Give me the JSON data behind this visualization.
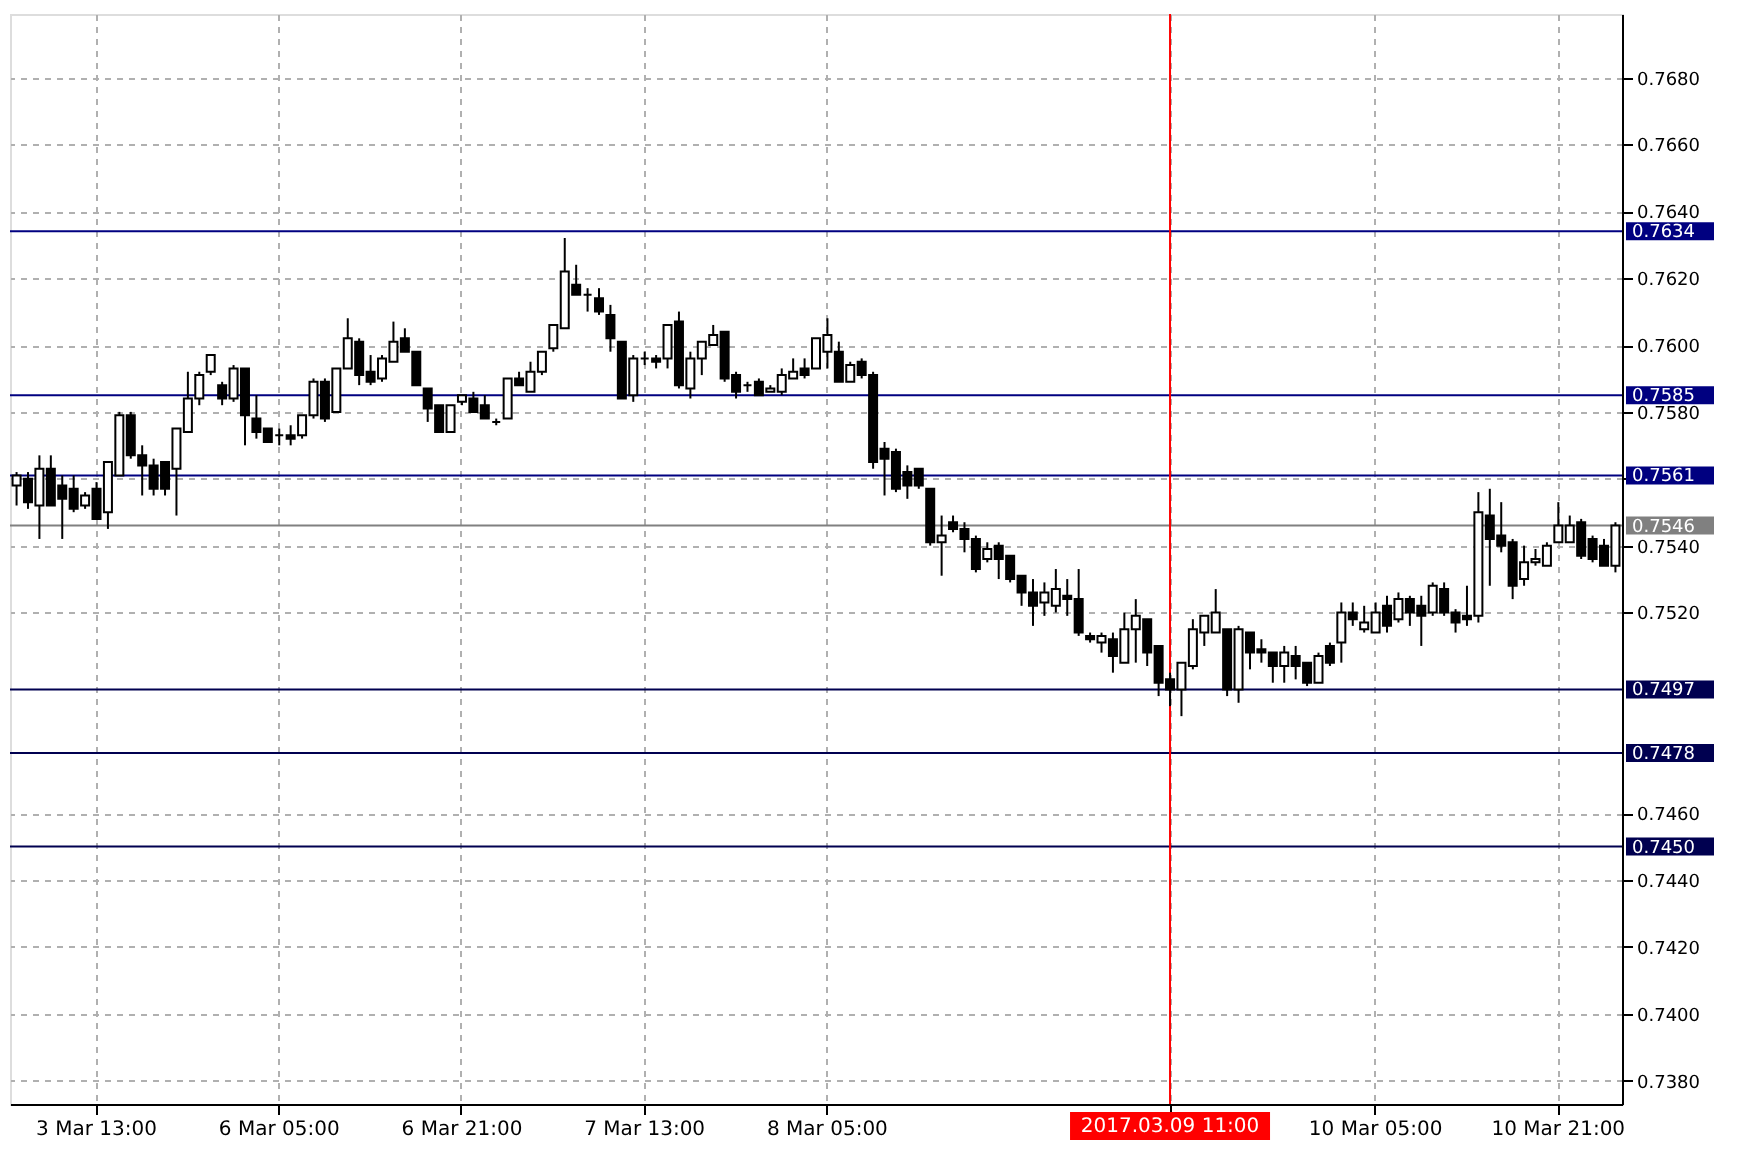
{
  "chart_data": {
    "type": "candlestick",
    "categories": [
      null,
      null,
      null,
      null,
      null,
      null,
      null,
      "3 Mar 13:00",
      null,
      null,
      null,
      null,
      null,
      null,
      null,
      null,
      null,
      null,
      null,
      null,
      null,
      null,
      null,
      "6 Mar 05:00",
      null,
      null,
      null,
      null,
      null,
      null,
      null,
      null,
      null,
      null,
      null,
      null,
      null,
      null,
      null,
      "6 Mar 21:00",
      null,
      null,
      null,
      null,
      null,
      null,
      null,
      null,
      null,
      null,
      null,
      null,
      null,
      null,
      null,
      "7 Mar 13:00",
      null,
      null,
      null,
      null,
      null,
      null,
      null,
      null,
      null,
      null,
      null,
      null,
      null,
      null,
      null,
      "8 Mar 05:00",
      null,
      null,
      null,
      null,
      null,
      null,
      null,
      null,
      null,
      null,
      null,
      null,
      null,
      null,
      null,
      null,
      null,
      null,
      null,
      null,
      null,
      null,
      null,
      null,
      null,
      null,
      null,
      null,
      null,
      "2017.03.09 11:00",
      null,
      null,
      null,
      null,
      null,
      null,
      null,
      null,
      null,
      null,
      null,
      null,
      null,
      null,
      null,
      null,
      null,
      "10 Mar 05:00",
      null,
      null,
      null,
      null,
      null,
      null,
      null,
      null,
      null,
      null,
      null,
      null,
      null,
      null,
      null,
      "10 Mar 21:00",
      null,
      null,
      null,
      null,
      null
    ],
    "ohlc": [
      [
        0.7558,
        0.7562,
        0.7552,
        0.7561
      ],
      [
        0.756,
        0.7562,
        0.7551,
        0.7553
      ],
      [
        0.7552,
        0.7567,
        0.7542,
        0.7563
      ],
      [
        0.7563,
        0.7567,
        0.7552,
        0.7552
      ],
      [
        0.7558,
        0.7561,
        0.7542,
        0.7554
      ],
      [
        0.7557,
        0.7561,
        0.755,
        0.7551
      ],
      [
        0.7552,
        0.7556,
        0.7551,
        0.7555
      ],
      [
        0.7557,
        0.7559,
        0.7548,
        0.7548
      ],
      [
        0.755,
        0.7565,
        0.7545,
        0.7565
      ],
      [
        0.7561,
        0.758,
        0.7561,
        0.7579
      ],
      [
        0.7579,
        0.758,
        0.7566,
        0.7567
      ],
      [
        0.7567,
        0.757,
        0.7555,
        0.7564
      ],
      [
        0.7564,
        0.7566,
        0.7555,
        0.7557
      ],
      [
        0.7565,
        0.7565,
        0.7555,
        0.7557
      ],
      [
        0.7563,
        0.7575,
        0.7549,
        0.7575
      ],
      [
        0.7574,
        0.7592,
        0.7574,
        0.7584
      ],
      [
        0.7584,
        0.7592,
        0.7582,
        0.7591
      ],
      [
        0.7592,
        0.7597,
        0.7591,
        0.7597
      ],
      [
        0.7588,
        0.7589,
        0.7582,
        0.7584
      ],
      [
        0.7584,
        0.7594,
        0.7583,
        0.7593
      ],
      [
        0.7593,
        0.7593,
        0.757,
        0.7579
      ],
      [
        0.7578,
        0.7585,
        0.7572,
        0.7574
      ],
      [
        0.7575,
        0.7575,
        0.7571,
        0.7571
      ],
      [
        0.7573,
        0.7575,
        0.757,
        0.7573
      ],
      [
        0.7573,
        0.7576,
        0.757,
        0.7572
      ],
      [
        0.7573,
        0.7579,
        0.7572,
        0.7579
      ],
      [
        0.7579,
        0.759,
        0.7578,
        0.7589
      ],
      [
        0.7589,
        0.759,
        0.7577,
        0.7578
      ],
      [
        0.758,
        0.7593,
        0.758,
        0.7593
      ],
      [
        0.7593,
        0.7608,
        0.7593,
        0.7602
      ],
      [
        0.7601,
        0.7602,
        0.7588,
        0.7591
      ],
      [
        0.7592,
        0.7597,
        0.7588,
        0.7589
      ],
      [
        0.759,
        0.7597,
        0.7589,
        0.7596
      ],
      [
        0.7595,
        0.7607,
        0.7595,
        0.7601
      ],
      [
        0.7602,
        0.7605,
        0.7598,
        0.7598
      ],
      [
        0.7598,
        0.7598,
        0.7588,
        0.7588
      ],
      [
        0.7587,
        0.7587,
        0.7577,
        0.7581
      ],
      [
        0.7582,
        0.7582,
        0.7574,
        0.7574
      ],
      [
        0.7574,
        0.7582,
        0.7574,
        0.7582
      ],
      [
        0.7583,
        0.7585,
        0.7582,
        0.7585
      ],
      [
        0.7584,
        0.7586,
        0.758,
        0.758
      ],
      [
        0.7582,
        0.7585,
        0.7578,
        0.7578
      ],
      [
        0.7577,
        0.7578,
        0.7576,
        0.7577
      ],
      [
        0.7578,
        0.759,
        0.7578,
        0.759
      ],
      [
        0.759,
        0.7592,
        0.7588,
        0.7588
      ],
      [
        0.7586,
        0.7595,
        0.7586,
        0.7592
      ],
      [
        0.7592,
        0.7598,
        0.7591,
        0.7598
      ],
      [
        0.7599,
        0.7606,
        0.7598,
        0.7606
      ],
      [
        0.7605,
        0.7632,
        0.7605,
        0.7622
      ],
      [
        0.7618,
        0.7624,
        0.7615,
        0.7615
      ],
      [
        0.7615,
        0.7617,
        0.761,
        0.7615
      ],
      [
        0.7614,
        0.7617,
        0.7609,
        0.761
      ],
      [
        0.7609,
        0.7612,
        0.7598,
        0.7602
      ],
      [
        0.7601,
        0.7601,
        0.7584,
        0.7584
      ],
      [
        0.7585,
        0.7597,
        0.7583,
        0.7596
      ],
      [
        0.7596,
        0.7598,
        0.7594,
        0.7596
      ],
      [
        0.7596,
        0.7597,
        0.7593,
        0.7595
      ],
      [
        0.7596,
        0.7606,
        0.7593,
        0.7606
      ],
      [
        0.7607,
        0.761,
        0.7587,
        0.7588
      ],
      [
        0.7587,
        0.7598,
        0.7584,
        0.7596
      ],
      [
        0.7596,
        0.7601,
        0.7591,
        0.7601
      ],
      [
        0.76,
        0.7606,
        0.76,
        0.7603
      ],
      [
        0.7604,
        0.7604,
        0.7589,
        0.759
      ],
      [
        0.7591,
        0.7592,
        0.7584,
        0.7586
      ],
      [
        0.7588,
        0.7589,
        0.7586,
        0.7588
      ],
      [
        0.7589,
        0.759,
        0.7585,
        0.7585
      ],
      [
        0.7586,
        0.7588,
        0.7586,
        0.7587
      ],
      [
        0.7586,
        0.7593,
        0.7585,
        0.7591
      ],
      [
        0.759,
        0.7596,
        0.759,
        0.7592
      ],
      [
        0.7593,
        0.7596,
        0.759,
        0.7591
      ],
      [
        0.7593,
        0.7602,
        0.7593,
        0.7602
      ],
      [
        0.7598,
        0.7608,
        0.7593,
        0.7603
      ],
      [
        0.7598,
        0.7601,
        0.7589,
        0.7589
      ],
      [
        0.7589,
        0.7595,
        0.7589,
        0.7594
      ],
      [
        0.7595,
        0.7596,
        0.759,
        0.7591
      ],
      [
        0.7591,
        0.7592,
        0.7563,
        0.7565
      ],
      [
        0.7569,
        0.7571,
        0.7555,
        0.7566
      ],
      [
        0.7568,
        0.7569,
        0.7556,
        0.7557
      ],
      [
        0.7562,
        0.7564,
        0.7554,
        0.7558
      ],
      [
        0.7563,
        0.7563,
        0.7557,
        0.7558
      ],
      [
        0.7557,
        0.7557,
        0.754,
        0.7541
      ],
      [
        0.7541,
        0.7549,
        0.7531,
        0.7543
      ],
      [
        0.7547,
        0.7549,
        0.7544,
        0.7545
      ],
      [
        0.7545,
        0.7547,
        0.7538,
        0.7542
      ],
      [
        0.7542,
        0.7543,
        0.7532,
        0.7533
      ],
      [
        0.7536,
        0.7541,
        0.7535,
        0.7539
      ],
      [
        0.754,
        0.7541,
        0.753,
        0.7536
      ],
      [
        0.7537,
        0.7537,
        0.7529,
        0.753
      ],
      [
        0.7531,
        0.7531,
        0.7522,
        0.7526
      ],
      [
        0.7526,
        0.753,
        0.7516,
        0.7522
      ],
      [
        0.7523,
        0.7529,
        0.7519,
        0.7526
      ],
      [
        0.7522,
        0.7533,
        0.752,
        0.7527
      ],
      [
        0.7525,
        0.753,
        0.7519,
        0.7524
      ],
      [
        0.7524,
        0.7533,
        0.7513,
        0.7514
      ],
      [
        0.7513,
        0.7514,
        0.7511,
        0.7512
      ],
      [
        0.7511,
        0.7514,
        0.7508,
        0.7513
      ],
      [
        0.7512,
        0.7514,
        0.7502,
        0.7507
      ],
      [
        0.7505,
        0.752,
        0.7505,
        0.7515
      ],
      [
        0.7515,
        0.7524,
        0.7505,
        0.7519
      ],
      [
        0.7518,
        0.7518,
        0.7504,
        0.7508
      ],
      [
        0.751,
        0.751,
        0.7495,
        0.7499
      ],
      [
        0.75,
        0.7502,
        0.7492,
        0.7497
      ],
      [
        0.7497,
        0.7505,
        0.7489,
        0.7505
      ],
      [
        0.7504,
        0.7518,
        0.7503,
        0.7515
      ],
      [
        0.7514,
        0.7519,
        0.751,
        0.7519
      ],
      [
        0.7514,
        0.7527,
        0.7514,
        0.752
      ],
      [
        0.7515,
        0.7515,
        0.7495,
        0.7497
      ],
      [
        0.7497,
        0.7516,
        0.7493,
        0.7515
      ],
      [
        0.7514,
        0.7514,
        0.7503,
        0.7508
      ],
      [
        0.7509,
        0.7512,
        0.7505,
        0.7508
      ],
      [
        0.7508,
        0.7508,
        0.7499,
        0.7504
      ],
      [
        0.7504,
        0.751,
        0.7499,
        0.7508
      ],
      [
        0.7507,
        0.751,
        0.75,
        0.7504
      ],
      [
        0.7505,
        0.7505,
        0.7498,
        0.7499
      ],
      [
        0.7499,
        0.7508,
        0.7499,
        0.7507
      ],
      [
        0.751,
        0.7511,
        0.7504,
        0.7505
      ],
      [
        0.7511,
        0.7523,
        0.7505,
        0.752
      ],
      [
        0.752,
        0.7523,
        0.7516,
        0.7518
      ],
      [
        0.7515,
        0.7522,
        0.7514,
        0.7517
      ],
      [
        0.7514,
        0.7523,
        0.7514,
        0.752
      ],
      [
        0.7522,
        0.7525,
        0.7514,
        0.7516
      ],
      [
        0.7518,
        0.7526,
        0.7517,
        0.7524
      ],
      [
        0.7524,
        0.7525,
        0.7516,
        0.752
      ],
      [
        0.7522,
        0.7525,
        0.751,
        0.7519
      ],
      [
        0.752,
        0.7529,
        0.7519,
        0.7528
      ],
      [
        0.7527,
        0.7529,
        0.7519,
        0.752
      ],
      [
        0.752,
        0.7521,
        0.7514,
        0.7517
      ],
      [
        0.7519,
        0.7528,
        0.7516,
        0.7518
      ],
      [
        0.7519,
        0.7556,
        0.7517,
        0.755
      ],
      [
        0.7549,
        0.7557,
        0.7528,
        0.7542
      ],
      [
        0.7543,
        0.7553,
        0.7538,
        0.754
      ],
      [
        0.7541,
        0.7542,
        0.7524,
        0.7528
      ],
      [
        0.753,
        0.754,
        0.7528,
        0.7535
      ],
      [
        0.7535,
        0.7539,
        0.7534,
        0.7536
      ],
      [
        0.7534,
        0.7541,
        0.7534,
        0.754
      ],
      [
        0.7541,
        0.7553,
        0.7541,
        0.7546
      ],
      [
        0.7541,
        0.7549,
        0.7541,
        0.7546
      ],
      [
        0.7547,
        0.7548,
        0.7536,
        0.7537
      ],
      [
        0.7542,
        0.7543,
        0.7535,
        0.7536
      ],
      [
        0.754,
        0.7542,
        0.7534,
        0.7534
      ],
      [
        0.7534,
        0.7547,
        0.7532,
        0.7546
      ]
    ],
    "ylim": [
      0.7373,
      0.7699
    ],
    "yticks": [
      {
        "value": 0.738,
        "label": "0.7380"
      },
      {
        "value": 0.74,
        "label": "0.7400"
      },
      {
        "value": 0.742,
        "label": "0.7420"
      },
      {
        "value": 0.744,
        "label": "0.7440"
      },
      {
        "value": 0.746,
        "label": "0.7460"
      },
      {
        "value": 0.752,
        "label": "0.7520"
      },
      {
        "value": 0.754,
        "label": "0.7540"
      },
      {
        "value": 0.756,
        "label": null
      },
      {
        "value": 0.758,
        "label": "0.7580"
      },
      {
        "value": 0.76,
        "label": "0.7600"
      },
      {
        "value": 0.762,
        "label": "0.7620"
      },
      {
        "value": 0.764,
        "label": "0.7640"
      },
      {
        "value": 0.766,
        "label": "0.7660"
      },
      {
        "value": 0.768,
        "label": "0.7680"
      }
    ],
    "ref_lines": [
      {
        "axis": "y",
        "value": 0.7634,
        "label": "0.7634",
        "color": "#000080"
      },
      {
        "axis": "y",
        "value": 0.7585,
        "label": "0.7585",
        "color": "#000080"
      },
      {
        "axis": "y",
        "value": 0.7561,
        "label": "0.7561",
        "color": "#000080"
      },
      {
        "axis": "y",
        "value": 0.7546,
        "label": "0.7546",
        "color": "#808080"
      },
      {
        "axis": "y",
        "value": 0.7497,
        "label": "0.7497",
        "color": "#000050"
      },
      {
        "axis": "y",
        "value": 0.7478,
        "label": "0.7478",
        "color": "#000050"
      },
      {
        "axis": "y",
        "value": 0.745,
        "label": "0.7450",
        "color": "#000050"
      },
      {
        "axis": "x",
        "value": "2017.03.09 11:00",
        "color": "#ff0000"
      }
    ],
    "grid": true
  }
}
